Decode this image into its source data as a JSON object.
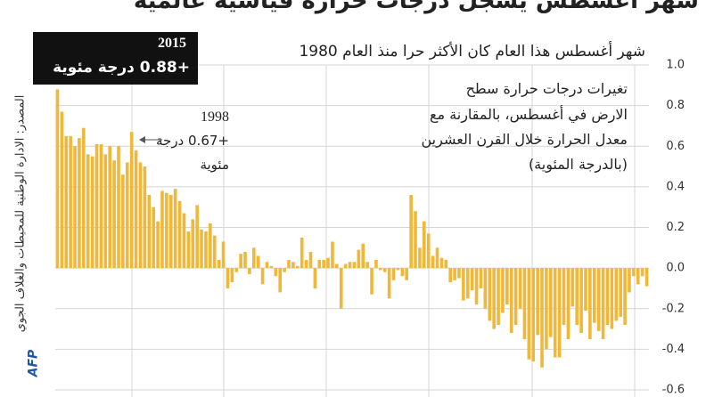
{
  "chart_data": {
    "type": "bar",
    "title": "شهر أغسطس يسجل درجات حرارة قياسية عالمية",
    "subtitle": "شهر أغسطس هذا العام كان الأكثر حرا منذ العام 1980",
    "highlight": {
      "year": "2015",
      "text": "+0.88 درجة مئوية"
    },
    "note": [
      "تغيرات درجات حرارة سطح",
      "الارض في أغسطس، بالمقارنة مع",
      "معدل الحرارة خلال القرن العشرين",
      "(بالدرجة المئوية)"
    ],
    "annotation": {
      "year": "1998",
      "lines": [
        "+0.67 درجة",
        "مئوية"
      ]
    },
    "source": "المصدر: الادارة الوطنية للمحيطات والغلاف الجوي",
    "logo": "AFP",
    "color": "#f0b83a",
    "grid": true,
    "values": [
      0.88,
      0.77,
      0.65,
      0.65,
      0.6,
      0.64,
      0.69,
      0.56,
      0.55,
      0.61,
      0.61,
      0.56,
      0.6,
      0.53,
      0.6,
      0.46,
      0.52,
      0.67,
      0.58,
      0.52,
      0.5,
      0.36,
      0.3,
      0.23,
      0.38,
      0.37,
      0.36,
      0.39,
      0.33,
      0.27,
      0.18,
      0.24,
      0.31,
      0.19,
      0.18,
      0.22,
      0.16,
      0.04,
      0.13,
      -0.1,
      -0.07,
      -0.02,
      0.07,
      0.08,
      -0.03,
      0.1,
      0.06,
      -0.08,
      0.03,
      0.01,
      -0.04,
      -0.12,
      -0.02,
      0.04,
      0.03,
      0.01,
      0.15,
      0.04,
      0.08,
      -0.1,
      0.04,
      0.04,
      0.05,
      0.13,
      0.02,
      -0.2,
      0.02,
      0.03,
      0.03,
      0.09,
      0.12,
      0.03,
      -0.13,
      0.04,
      -0.01,
      -0.02,
      -0.15,
      -0.06,
      -0.01,
      -0.04,
      -0.06,
      0.36,
      0.28,
      0.1,
      0.23,
      0.17,
      0.06,
      0.1,
      0.05,
      0.04,
      -0.07,
      -0.06,
      -0.05,
      -0.16,
      -0.15,
      -0.11,
      -0.18,
      -0.1,
      -0.2,
      -0.26,
      -0.3,
      -0.28,
      -0.22,
      -0.18,
      -0.32,
      -0.28,
      -0.2,
      -0.35,
      -0.45,
      -0.46,
      -0.33,
      -0.49,
      -0.4,
      -0.34,
      -0.44,
      -0.44,
      -0.28,
      -0.35,
      -0.19,
      -0.28,
      -0.32,
      -0.21,
      -0.35,
      -0.27,
      -0.31,
      -0.35,
      -0.28,
      -0.3,
      -0.26,
      -0.24,
      -0.28,
      -0.12,
      -0.04,
      -0.08,
      -0.04,
      -0.09
    ],
    "ylim": [
      -0.6,
      1.0
    ],
    "yticks": [
      {
        "value": 1,
        "label": "1.0"
      },
      0.8,
      0.6,
      0.4,
      0.2,
      {
        "value": 0,
        "label": "0.0"
      },
      -0.2,
      -0.4,
      -0.6
    ]
  }
}
